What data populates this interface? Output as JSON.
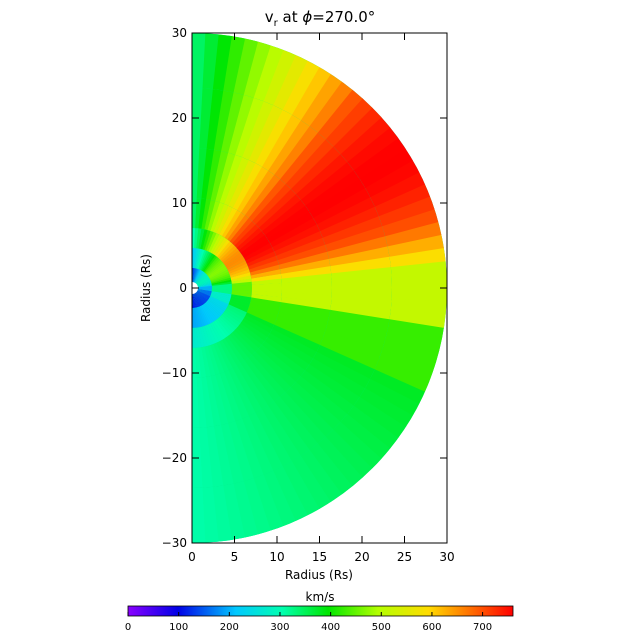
{
  "chart_data": {
    "type": "heatmap",
    "title": "v",
    "title_subscript": "r",
    "title_rest": " at ",
    "title_phi_symbol": "ϕ",
    "title_phi_value": "=270.0°",
    "xlabel": "Radius (Rs)",
    "ylabel": "Radius (Rs)",
    "xlim": [
      0,
      30
    ],
    "ylim": [
      -30,
      30
    ],
    "x_ticks": [
      "0",
      "5",
      "10",
      "15",
      "20",
      "25",
      "30"
    ],
    "y_ticks": [
      "30",
      "20",
      "10",
      "0",
      "−10",
      "−20",
      "−30"
    ],
    "domain_shape": "half-disk of radius 30, inner boundary radius ~1",
    "colorbar": {
      "label": "km/s",
      "range": [
        0,
        760
      ],
      "ticks": [
        "0",
        "100",
        "200",
        "300",
        "400",
        "500",
        "600",
        "700"
      ],
      "colormap": "rainbow (purple-blue-cyan-green-yellow-orange-red)"
    },
    "features": [
      {
        "region": "upper-right sector (angle ~15°-50° above equator)",
        "speed_km_s": 750
      },
      {
        "region": "upper sector near angle ~60°",
        "speed_km_s": 650
      },
      {
        "region": "equatorial band (angle ~-5° to 10°)",
        "speed_km_s": 520
      },
      {
        "region": "lower hemisphere",
        "speed_km_s": 380
      },
      {
        "region": "polar regions near the axis",
        "speed_km_s": 320
      },
      {
        "region": "inner region near the Sun (r < 3)",
        "speed_km_s": 50
      }
    ]
  },
  "colors": {
    "background": "#ffffff",
    "axes": "#000000"
  }
}
